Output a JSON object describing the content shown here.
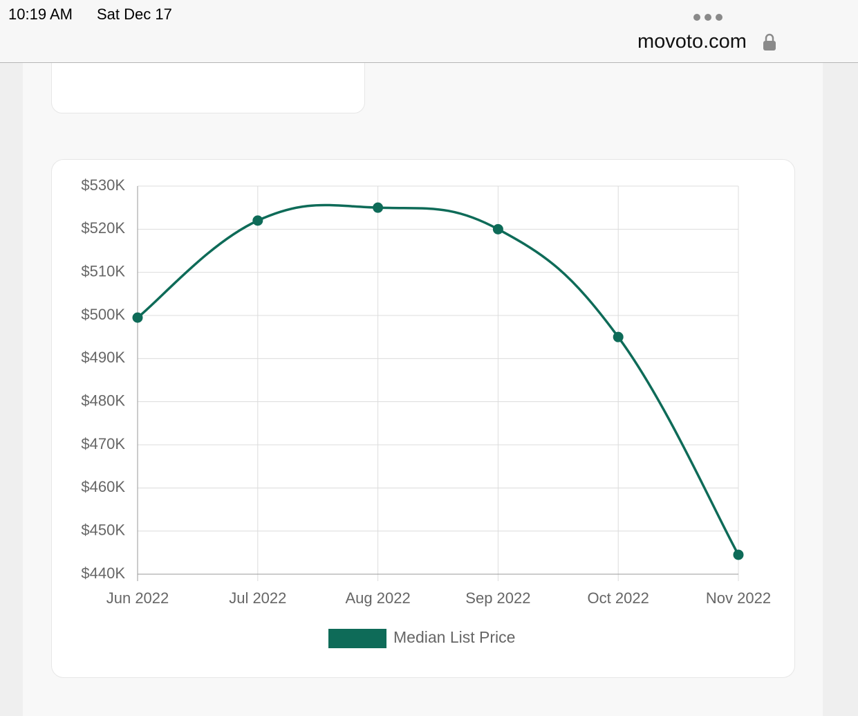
{
  "status_bar": {
    "time": "10:19 AM",
    "date": "Sat Dec 17"
  },
  "browser": {
    "url": "movoto.com"
  },
  "chart_data": {
    "type": "line",
    "categories": [
      "Jun 2022",
      "Jul 2022",
      "Aug 2022",
      "Sep 2022",
      "Oct 2022",
      "Nov 2022"
    ],
    "series": [
      {
        "name": "Median List Price",
        "color": "#0e6b58",
        "values": [
          499500,
          522000,
          525000,
          520000,
          495000,
          444500
        ]
      }
    ],
    "ylim": [
      440000,
      530000
    ],
    "yticks": [
      {
        "value": 440000,
        "label": "$440K"
      },
      {
        "value": 450000,
        "label": "$450K"
      },
      {
        "value": 460000,
        "label": "$460K"
      },
      {
        "value": 470000,
        "label": "$470K"
      },
      {
        "value": 480000,
        "label": "$480K"
      },
      {
        "value": 490000,
        "label": "$490K"
      },
      {
        "value": 500000,
        "label": "$500K"
      },
      {
        "value": 510000,
        "label": "$510K"
      },
      {
        "value": 520000,
        "label": "$520K"
      },
      {
        "value": 530000,
        "label": "$530K"
      }
    ],
    "grid": true,
    "legend": "bottom"
  }
}
